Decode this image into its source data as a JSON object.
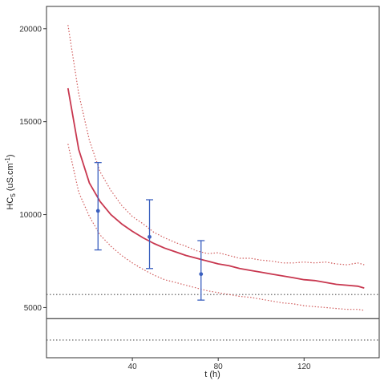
{
  "chart_data": {
    "type": "line",
    "title": "",
    "xlabel": "t (h)",
    "ylabel": "HC5 (uS.cm-1)",
    "ylabel_parts": {
      "main": "HC",
      "subscript": "5",
      "unit_open": " (uS.cm",
      "superscript": "-1",
      "unit_close": ")"
    },
    "xlim": [
      0,
      155
    ],
    "ylim": [
      2300,
      21200
    ],
    "x_ticks": [
      40,
      80,
      120
    ],
    "y_ticks": [
      5000,
      10000,
      15000,
      20000
    ],
    "grid": false,
    "legend": "none",
    "colors": {
      "median": "#c8374f",
      "bounds": "#d05a5a",
      "observed": "#3a5fbf",
      "reference": "#555555",
      "frame": "#333333"
    },
    "series": [
      {
        "style": "solid",
        "x": [
          10,
          15,
          20,
          25,
          30,
          35,
          40,
          45,
          50,
          55,
          60,
          65,
          70,
          75,
          80,
          85,
          90,
          95,
          100,
          105,
          110,
          115,
          120,
          125,
          130,
          135,
          140,
          145,
          148
        ],
        "y": [
          16800,
          13500,
          11700,
          10700,
          10000,
          9500,
          9100,
          8750,
          8450,
          8200,
          8000,
          7800,
          7650,
          7500,
          7350,
          7250,
          7100,
          7000,
          6900,
          6800,
          6700,
          6600,
          6500,
          6450,
          6350,
          6250,
          6200,
          6150,
          6050
        ]
      },
      {
        "style": "dotted",
        "x": [
          10,
          15,
          20,
          25,
          30,
          35,
          40,
          45,
          50,
          55,
          60,
          65,
          70,
          75,
          80,
          85,
          90,
          95,
          100,
          105,
          110,
          115,
          120,
          125,
          130,
          135,
          140,
          145,
          148
        ],
        "y": [
          20200,
          16500,
          14000,
          12300,
          11300,
          10500,
          9900,
          9500,
          9050,
          8750,
          8500,
          8300,
          8050,
          7900,
          7950,
          7800,
          7650,
          7650,
          7550,
          7500,
          7400,
          7400,
          7450,
          7400,
          7450,
          7350,
          7300,
          7400,
          7300
        ]
      },
      {
        "style": "dotted",
        "x": [
          10,
          15,
          20,
          25,
          30,
          35,
          40,
          45,
          50,
          55,
          60,
          65,
          70,
          75,
          80,
          85,
          90,
          95,
          100,
          105,
          110,
          115,
          120,
          125,
          130,
          135,
          140,
          145,
          148
        ],
        "y": [
          13800,
          11200,
          9900,
          8900,
          8300,
          7800,
          7400,
          7050,
          6750,
          6500,
          6350,
          6200,
          6050,
          5900,
          5800,
          5700,
          5600,
          5550,
          5450,
          5350,
          5250,
          5200,
          5100,
          5050,
          5000,
          4950,
          4900,
          4900,
          4850
        ]
      },
      {
        "style": "errorbar",
        "x": [
          24,
          48,
          72
        ],
        "y": [
          10200,
          8800,
          6800
        ],
        "low": [
          8100,
          7100,
          5400
        ],
        "high": [
          12800,
          10800,
          8600
        ]
      },
      {
        "style": "hline-solid",
        "y": 4400
      },
      {
        "style": "hline-dotted",
        "y": 5700
      },
      {
        "style": "hline-dotted",
        "y": 3250
      }
    ]
  }
}
